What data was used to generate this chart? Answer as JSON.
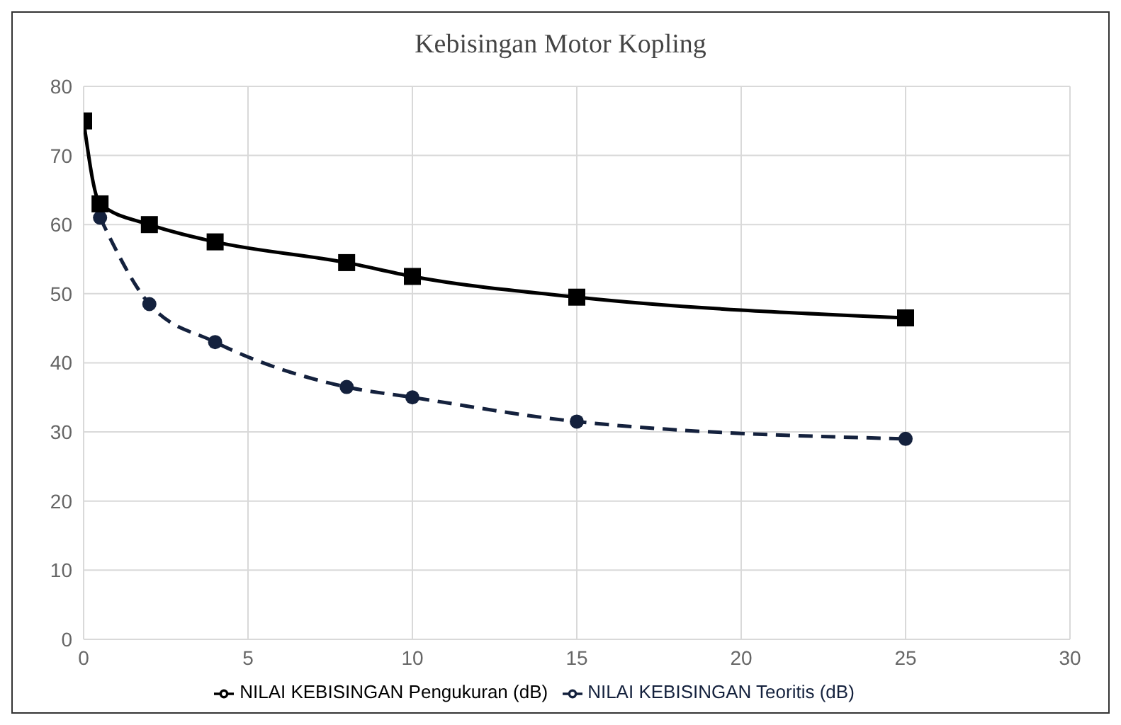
{
  "chart_data": {
    "type": "line",
    "title": "Kebisingan Motor Kopling",
    "series": [
      {
        "name": "NILAI KEBISINGAN Teoritis (dB)",
        "color": "#14213d",
        "marker": "circle",
        "line_style": "dashed",
        "x": [
          0.5,
          2,
          4,
          8,
          10,
          15,
          25
        ],
        "values": [
          61,
          48.5,
          43,
          36.5,
          35,
          31.5,
          29
        ]
      },
      {
        "name": "NILAI KEBISINGAN Pengukuran (dB)",
        "color": "#000000",
        "marker": "square",
        "line_style": "solid",
        "x": [
          0,
          0.5,
          2,
          4,
          8,
          10,
          15,
          25
        ],
        "values": [
          75,
          63,
          60,
          57.5,
          54.5,
          52.5,
          49.5,
          46.5
        ]
      }
    ],
    "xlim": [
      0,
      30
    ],
    "xticks": [
      0,
      5,
      10,
      15,
      20,
      25,
      30
    ],
    "ylim": [
      0,
      80
    ],
    "yticks": [
      0,
      10,
      20,
      30,
      40,
      50,
      60,
      70,
      80
    ],
    "grid": true,
    "legend": "bottom"
  }
}
